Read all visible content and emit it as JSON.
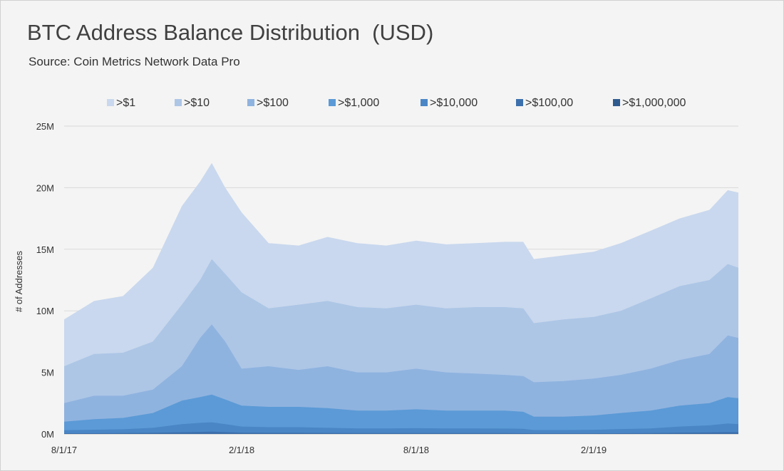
{
  "title": "BTC Address Balance Distribution  (USD)",
  "subtitle": "Source: Coin Metrics Network Data Pro",
  "chart_data": {
    "type": "area",
    "stacked": false,
    "ylabel": "# of Addresses",
    "xlabel": "",
    "ylim": [
      0,
      25000000
    ],
    "y_ticks": [
      0,
      5000000,
      10000000,
      15000000,
      20000000,
      25000000
    ],
    "y_tick_labels": [
      "0M",
      "5M",
      "10M",
      "15M",
      "20M",
      "25M"
    ],
    "x_ticks": [
      "2017-08-01",
      "2018-02-01",
      "2018-08-01",
      "2019-02-01"
    ],
    "x_tick_labels": [
      "8/1/17",
      "2/1/18",
      "8/1/18",
      "2/1/19"
    ],
    "x": [
      "2017-08-01",
      "2017-09-01",
      "2017-10-01",
      "2017-11-01",
      "2017-12-01",
      "2017-12-20",
      "2018-01-01",
      "2018-01-15",
      "2018-02-01",
      "2018-03-01",
      "2018-04-01",
      "2018-05-01",
      "2018-06-01",
      "2018-07-01",
      "2018-08-01",
      "2018-09-01",
      "2018-10-01",
      "2018-11-01",
      "2018-11-20",
      "2018-12-01",
      "2019-01-01",
      "2019-02-01",
      "2019-03-01",
      "2019-04-01",
      "2019-05-01",
      "2019-06-01",
      "2019-06-20",
      "2019-07-01"
    ],
    "series": [
      {
        "name": ">$1",
        "color": "#c9d8ee",
        "values": [
          9.3,
          10.8,
          11.2,
          13.5,
          18.5,
          20.5,
          22.0,
          20.0,
          18.0,
          15.5,
          15.3,
          16.0,
          15.5,
          15.3,
          15.7,
          15.4,
          15.5,
          15.6,
          15.6,
          14.2,
          14.5,
          14.8,
          15.5,
          16.5,
          17.5,
          18.2,
          19.8,
          19.6
        ]
      },
      {
        "name": ">$10",
        "color": "#adc6e6",
        "values": [
          5.5,
          6.5,
          6.6,
          7.5,
          10.5,
          12.5,
          14.2,
          13.0,
          11.5,
          10.2,
          10.5,
          10.8,
          10.3,
          10.2,
          10.5,
          10.2,
          10.3,
          10.3,
          10.2,
          9.0,
          9.3,
          9.5,
          10.0,
          11.0,
          12.0,
          12.5,
          13.8,
          13.5
        ]
      },
      {
        "name": ">$100",
        "color": "#8fb3df",
        "values": [
          2.5,
          3.1,
          3.1,
          3.6,
          5.5,
          7.8,
          8.9,
          7.5,
          5.3,
          5.5,
          5.2,
          5.5,
          5.0,
          5.0,
          5.3,
          5.0,
          4.9,
          4.8,
          4.7,
          4.2,
          4.3,
          4.5,
          4.8,
          5.3,
          6.0,
          6.5,
          8.0,
          7.8
        ]
      },
      {
        "name": ">$1,000",
        "color": "#5b9ad6",
        "values": [
          1.0,
          1.2,
          1.3,
          1.7,
          2.7,
          3.0,
          3.2,
          2.8,
          2.3,
          2.2,
          2.2,
          2.1,
          1.9,
          1.9,
          2.0,
          1.9,
          1.9,
          1.9,
          1.8,
          1.4,
          1.4,
          1.5,
          1.7,
          1.9,
          2.3,
          2.5,
          3.0,
          2.9
        ]
      },
      {
        "name": ">$10,000",
        "color": "#4a86c6",
        "values": [
          0.3,
          0.35,
          0.38,
          0.5,
          0.8,
          0.9,
          0.95,
          0.8,
          0.6,
          0.55,
          0.55,
          0.5,
          0.45,
          0.45,
          0.47,
          0.45,
          0.45,
          0.44,
          0.42,
          0.32,
          0.32,
          0.34,
          0.4,
          0.45,
          0.6,
          0.7,
          0.85,
          0.8
        ]
      },
      {
        "name": ">$100,00",
        "color": "#3c70ad",
        "values": [
          0.05,
          0.06,
          0.07,
          0.09,
          0.14,
          0.17,
          0.19,
          0.15,
          0.1,
          0.09,
          0.09,
          0.08,
          0.07,
          0.07,
          0.07,
          0.07,
          0.07,
          0.07,
          0.06,
          0.05,
          0.05,
          0.05,
          0.06,
          0.07,
          0.1,
          0.12,
          0.15,
          0.14
        ]
      },
      {
        "name": ">$1,000,000",
        "color": "#2f5a8e",
        "values": [
          0.005,
          0.006,
          0.007,
          0.009,
          0.015,
          0.018,
          0.02,
          0.016,
          0.011,
          0.01,
          0.01,
          0.009,
          0.008,
          0.008,
          0.008,
          0.008,
          0.008,
          0.008,
          0.007,
          0.006,
          0.006,
          0.006,
          0.007,
          0.008,
          0.011,
          0.013,
          0.016,
          0.015
        ]
      }
    ],
    "value_unit": "millions",
    "grid": true,
    "legend_position": "top"
  }
}
